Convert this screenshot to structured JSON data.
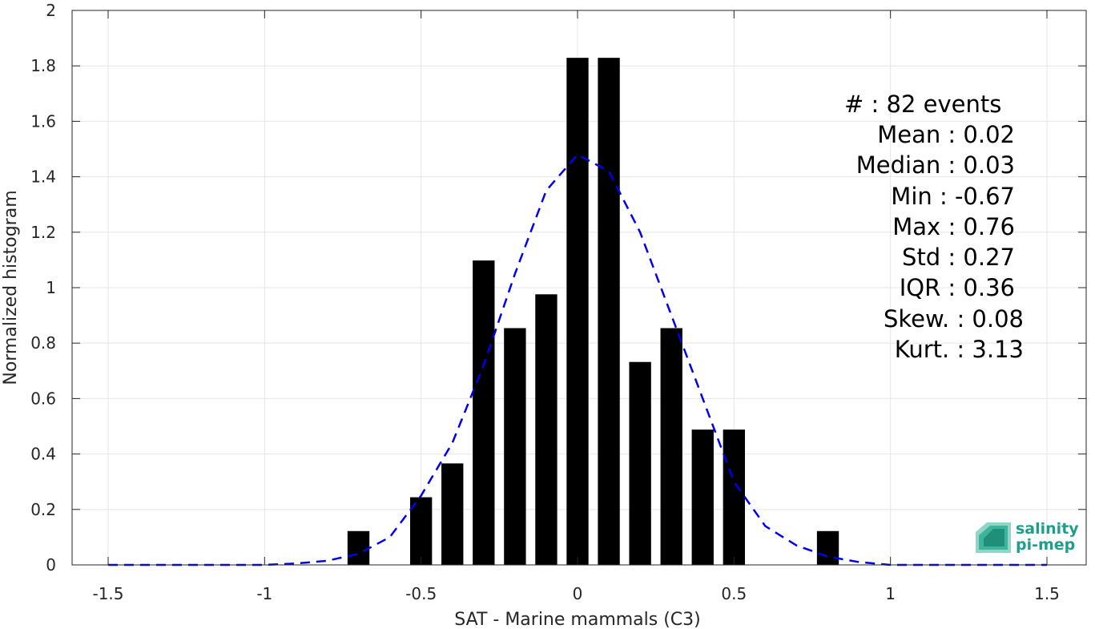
{
  "chart_data": {
    "type": "bar",
    "xlabel": "SAT - Marine mammals (C3)",
    "ylabel": "Normalized histogram",
    "xlim": [
      -1.5,
      1.5
    ],
    "ylim": [
      0,
      2
    ],
    "grid": true,
    "x_ticks": [
      -1.5,
      -1,
      -0.5,
      0,
      0.5,
      1,
      1.5
    ],
    "x_tick_labels": [
      "-1.5",
      "-1",
      "-0.5",
      "0",
      "0.5",
      "1",
      "1.5"
    ],
    "y_ticks": [
      0,
      0.2,
      0.4,
      0.6,
      0.8,
      1,
      1.2,
      1.4,
      1.6,
      1.8,
      2
    ],
    "y_tick_labels": [
      "0",
      "0.2",
      "0.4",
      "0.6",
      "0.8",
      "1",
      "1.2",
      "1.4",
      "1.6",
      "1.8",
      "2"
    ],
    "bin_width": 0.1,
    "bar_color": "#000000",
    "bars": [
      {
        "x": -0.7,
        "y": 0.122
      },
      {
        "x": -0.5,
        "y": 0.244
      },
      {
        "x": -0.4,
        "y": 0.366
      },
      {
        "x": -0.3,
        "y": 1.098
      },
      {
        "x": -0.2,
        "y": 0.854
      },
      {
        "x": -0.1,
        "y": 0.976
      },
      {
        "x": 0.0,
        "y": 1.829
      },
      {
        "x": 0.1,
        "y": 1.829
      },
      {
        "x": 0.2,
        "y": 0.732
      },
      {
        "x": 0.3,
        "y": 0.854
      },
      {
        "x": 0.4,
        "y": 0.488
      },
      {
        "x": 0.5,
        "y": 0.488
      },
      {
        "x": 0.8,
        "y": 0.122
      }
    ],
    "fit_curve": {
      "style": "dashed",
      "color": "#0000ee",
      "points": [
        [
          -1.5,
          0.0
        ],
        [
          -1.4,
          0.0
        ],
        [
          -1.3,
          0.0
        ],
        [
          -1.2,
          0.0
        ],
        [
          -1.1,
          0.0
        ],
        [
          -1.0,
          0.0
        ],
        [
          -0.9,
          0.005
        ],
        [
          -0.8,
          0.015
        ],
        [
          -0.7,
          0.04
        ],
        [
          -0.6,
          0.1
        ],
        [
          -0.5,
          0.25
        ],
        [
          -0.4,
          0.44
        ],
        [
          -0.3,
          0.72
        ],
        [
          -0.2,
          1.05
        ],
        [
          -0.1,
          1.35
        ],
        [
          0.0,
          1.48
        ],
        [
          0.1,
          1.42
        ],
        [
          0.2,
          1.2
        ],
        [
          0.3,
          0.9
        ],
        [
          0.4,
          0.6
        ],
        [
          0.5,
          0.3
        ],
        [
          0.6,
          0.14
        ],
        [
          0.7,
          0.07
        ],
        [
          0.8,
          0.03
        ],
        [
          0.9,
          0.01
        ],
        [
          1.0,
          0.0
        ],
        [
          1.1,
          0.0
        ],
        [
          1.2,
          0.0
        ],
        [
          1.3,
          0.0
        ],
        [
          1.4,
          0.0
        ],
        [
          1.5,
          0.0
        ]
      ]
    }
  },
  "stats": {
    "lines": [
      "#  : 82 events",
      "Mean : 0.02",
      "Median : 0.03",
      "Min : -0.67",
      "Max : 0.76",
      "Std : 0.27",
      "IQR : 0.36",
      "Skew. : 0.08",
      "Kurt. : 3.13"
    ]
  },
  "logo": {
    "line1": "salinity",
    "line2": "pi-mep",
    "color": "#1f9e8a"
  }
}
